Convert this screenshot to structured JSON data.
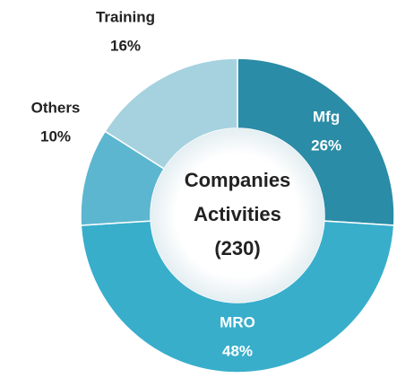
{
  "chart_data": {
    "type": "donut",
    "center_text": [
      "Companies",
      "Activities",
      "(230)"
    ],
    "categories": [
      "Mfg",
      "MRO",
      "Others",
      "Training"
    ],
    "values": [
      26,
      48,
      10,
      16
    ],
    "value_labels": [
      "26%",
      "48%",
      "10%",
      "16%"
    ],
    "colors": [
      "#2a8ca6",
      "#38aecb",
      "#5cb6cf",
      "#a6d2df"
    ]
  }
}
